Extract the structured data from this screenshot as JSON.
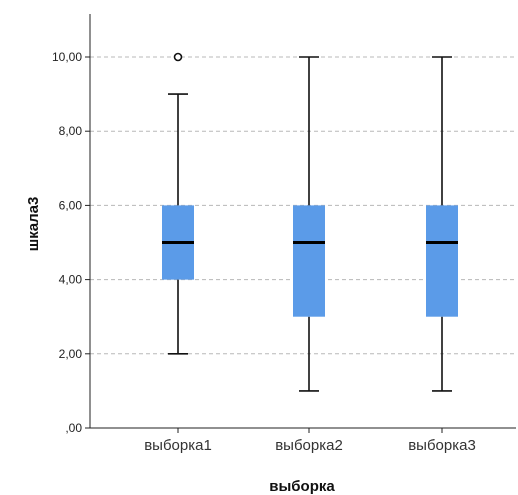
{
  "chart_data": {
    "type": "boxplot",
    "title": "",
    "xlabel": "выборка",
    "ylabel": "шкала3",
    "ylim": [
      0,
      11
    ],
    "yticks": [
      0,
      2,
      4,
      6,
      8,
      10
    ],
    "ytick_labels": [
      ",00",
      "2,00",
      "4,00",
      "6,00",
      "8,00",
      "10,00"
    ],
    "grid": "horizontal dashed",
    "categories": [
      "выборка1",
      "выборка2",
      "выборка3"
    ],
    "boxes": [
      {
        "min": 2,
        "q1": 4,
        "median": 5,
        "q3": 6,
        "max": 9,
        "outliers": [
          10
        ]
      },
      {
        "min": 1,
        "q1": 3,
        "median": 5,
        "q3": 6,
        "max": 10,
        "outliers": []
      },
      {
        "min": 1,
        "q1": 3,
        "median": 5,
        "q3": 6,
        "max": 10,
        "outliers": []
      }
    ],
    "box_color": "#5b9be8",
    "median_color": "#000000",
    "grid_color": "#b8b8b8"
  }
}
